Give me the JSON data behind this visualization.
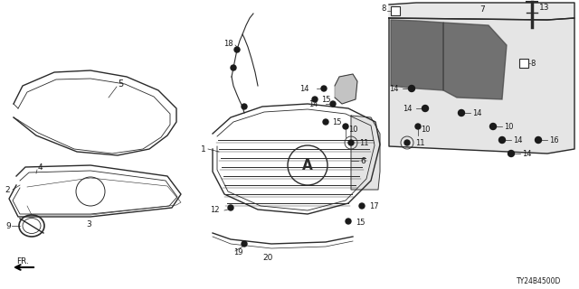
{
  "bg_color": "#ffffff",
  "line_color": "#2a2a2a",
  "label_color": "#1a1a1a",
  "diagram_code": "TY24B4500D",
  "lw_main": 1.0,
  "lw_thin": 0.5
}
